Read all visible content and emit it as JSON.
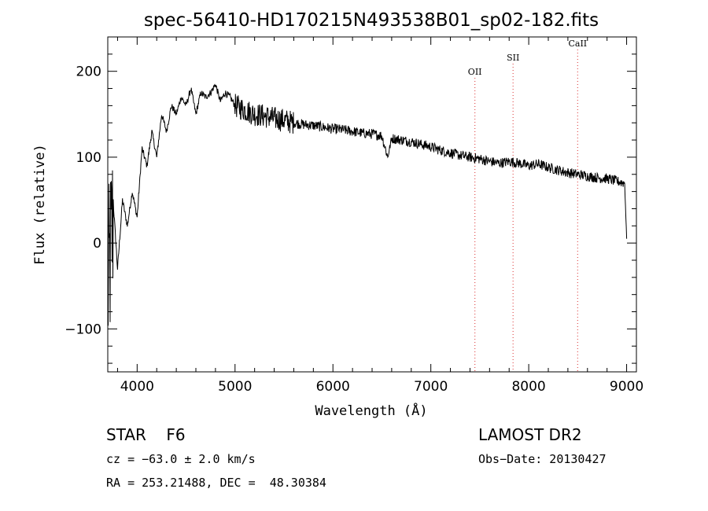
{
  "chart_data": {
    "type": "line",
    "title": "spec-56410-HD170215N493538B01_sp02-182.fits",
    "xlabel": "Wavelength (Å)",
    "ylabel": "Flux (relative)",
    "xlim": [
      3700,
      9100
    ],
    "ylim": [
      -150,
      240
    ],
    "xticks": [
      4000,
      5000,
      6000,
      7000,
      8000,
      9000
    ],
    "yticks": [
      -100,
      0,
      100,
      200
    ],
    "series": [
      {
        "x": [
          3700,
          3760,
          3800,
          3850,
          3900,
          3950,
          4000,
          4050,
          4100,
          4150,
          4200,
          4250,
          4300,
          4350,
          4400,
          4450,
          4500,
          4550,
          4600,
          4650,
          4700,
          4750,
          4800,
          4850,
          4900,
          4950,
          5000,
          5100,
          5200,
          5300,
          5400,
          5500,
          5600,
          5700,
          5800,
          5900,
          6000,
          6100,
          6200,
          6300,
          6400,
          6500,
          6560,
          6600,
          6700,
          6800,
          6900,
          7000,
          7100,
          7200,
          7300,
          7400,
          7500,
          7600,
          7700,
          7800,
          7900,
          8000,
          8100,
          8200,
          8300,
          8400,
          8500,
          8600,
          8700,
          8800,
          8900,
          8980,
          9000
        ],
        "y": [
          -60,
          40,
          -30,
          50,
          20,
          60,
          30,
          110,
          90,
          130,
          100,
          150,
          130,
          160,
          150,
          170,
          160,
          180,
          150,
          175,
          170,
          175,
          185,
          165,
          175,
          170,
          160,
          155,
          150,
          148,
          145,
          143,
          140,
          138,
          137,
          135,
          133,
          132,
          130,
          128,
          127,
          125,
          100,
          122,
          120,
          118,
          115,
          112,
          108,
          105,
          102,
          100,
          98,
          95,
          93,
          95,
          93,
          90,
          92,
          88,
          85,
          82,
          80,
          78,
          76,
          75,
          72,
          70,
          5
        ]
      }
    ],
    "spectral_lines": [
      {
        "label": "OII",
        "wavelength": 7450
      },
      {
        "label": "SII",
        "wavelength": 7840
      },
      {
        "label": "CaII",
        "wavelength": 8500
      }
    ]
  },
  "info": {
    "object": "STAR    F6",
    "cz": "cz = −63.0 ± 2.0 km/s",
    "coords": "RA = 253.21488, DEC =  48.30384",
    "survey": "LAMOST DR2",
    "obs_date": "Obs−Date: 20130427"
  },
  "colors": {
    "line": "#000000",
    "marker": "#e05050"
  }
}
